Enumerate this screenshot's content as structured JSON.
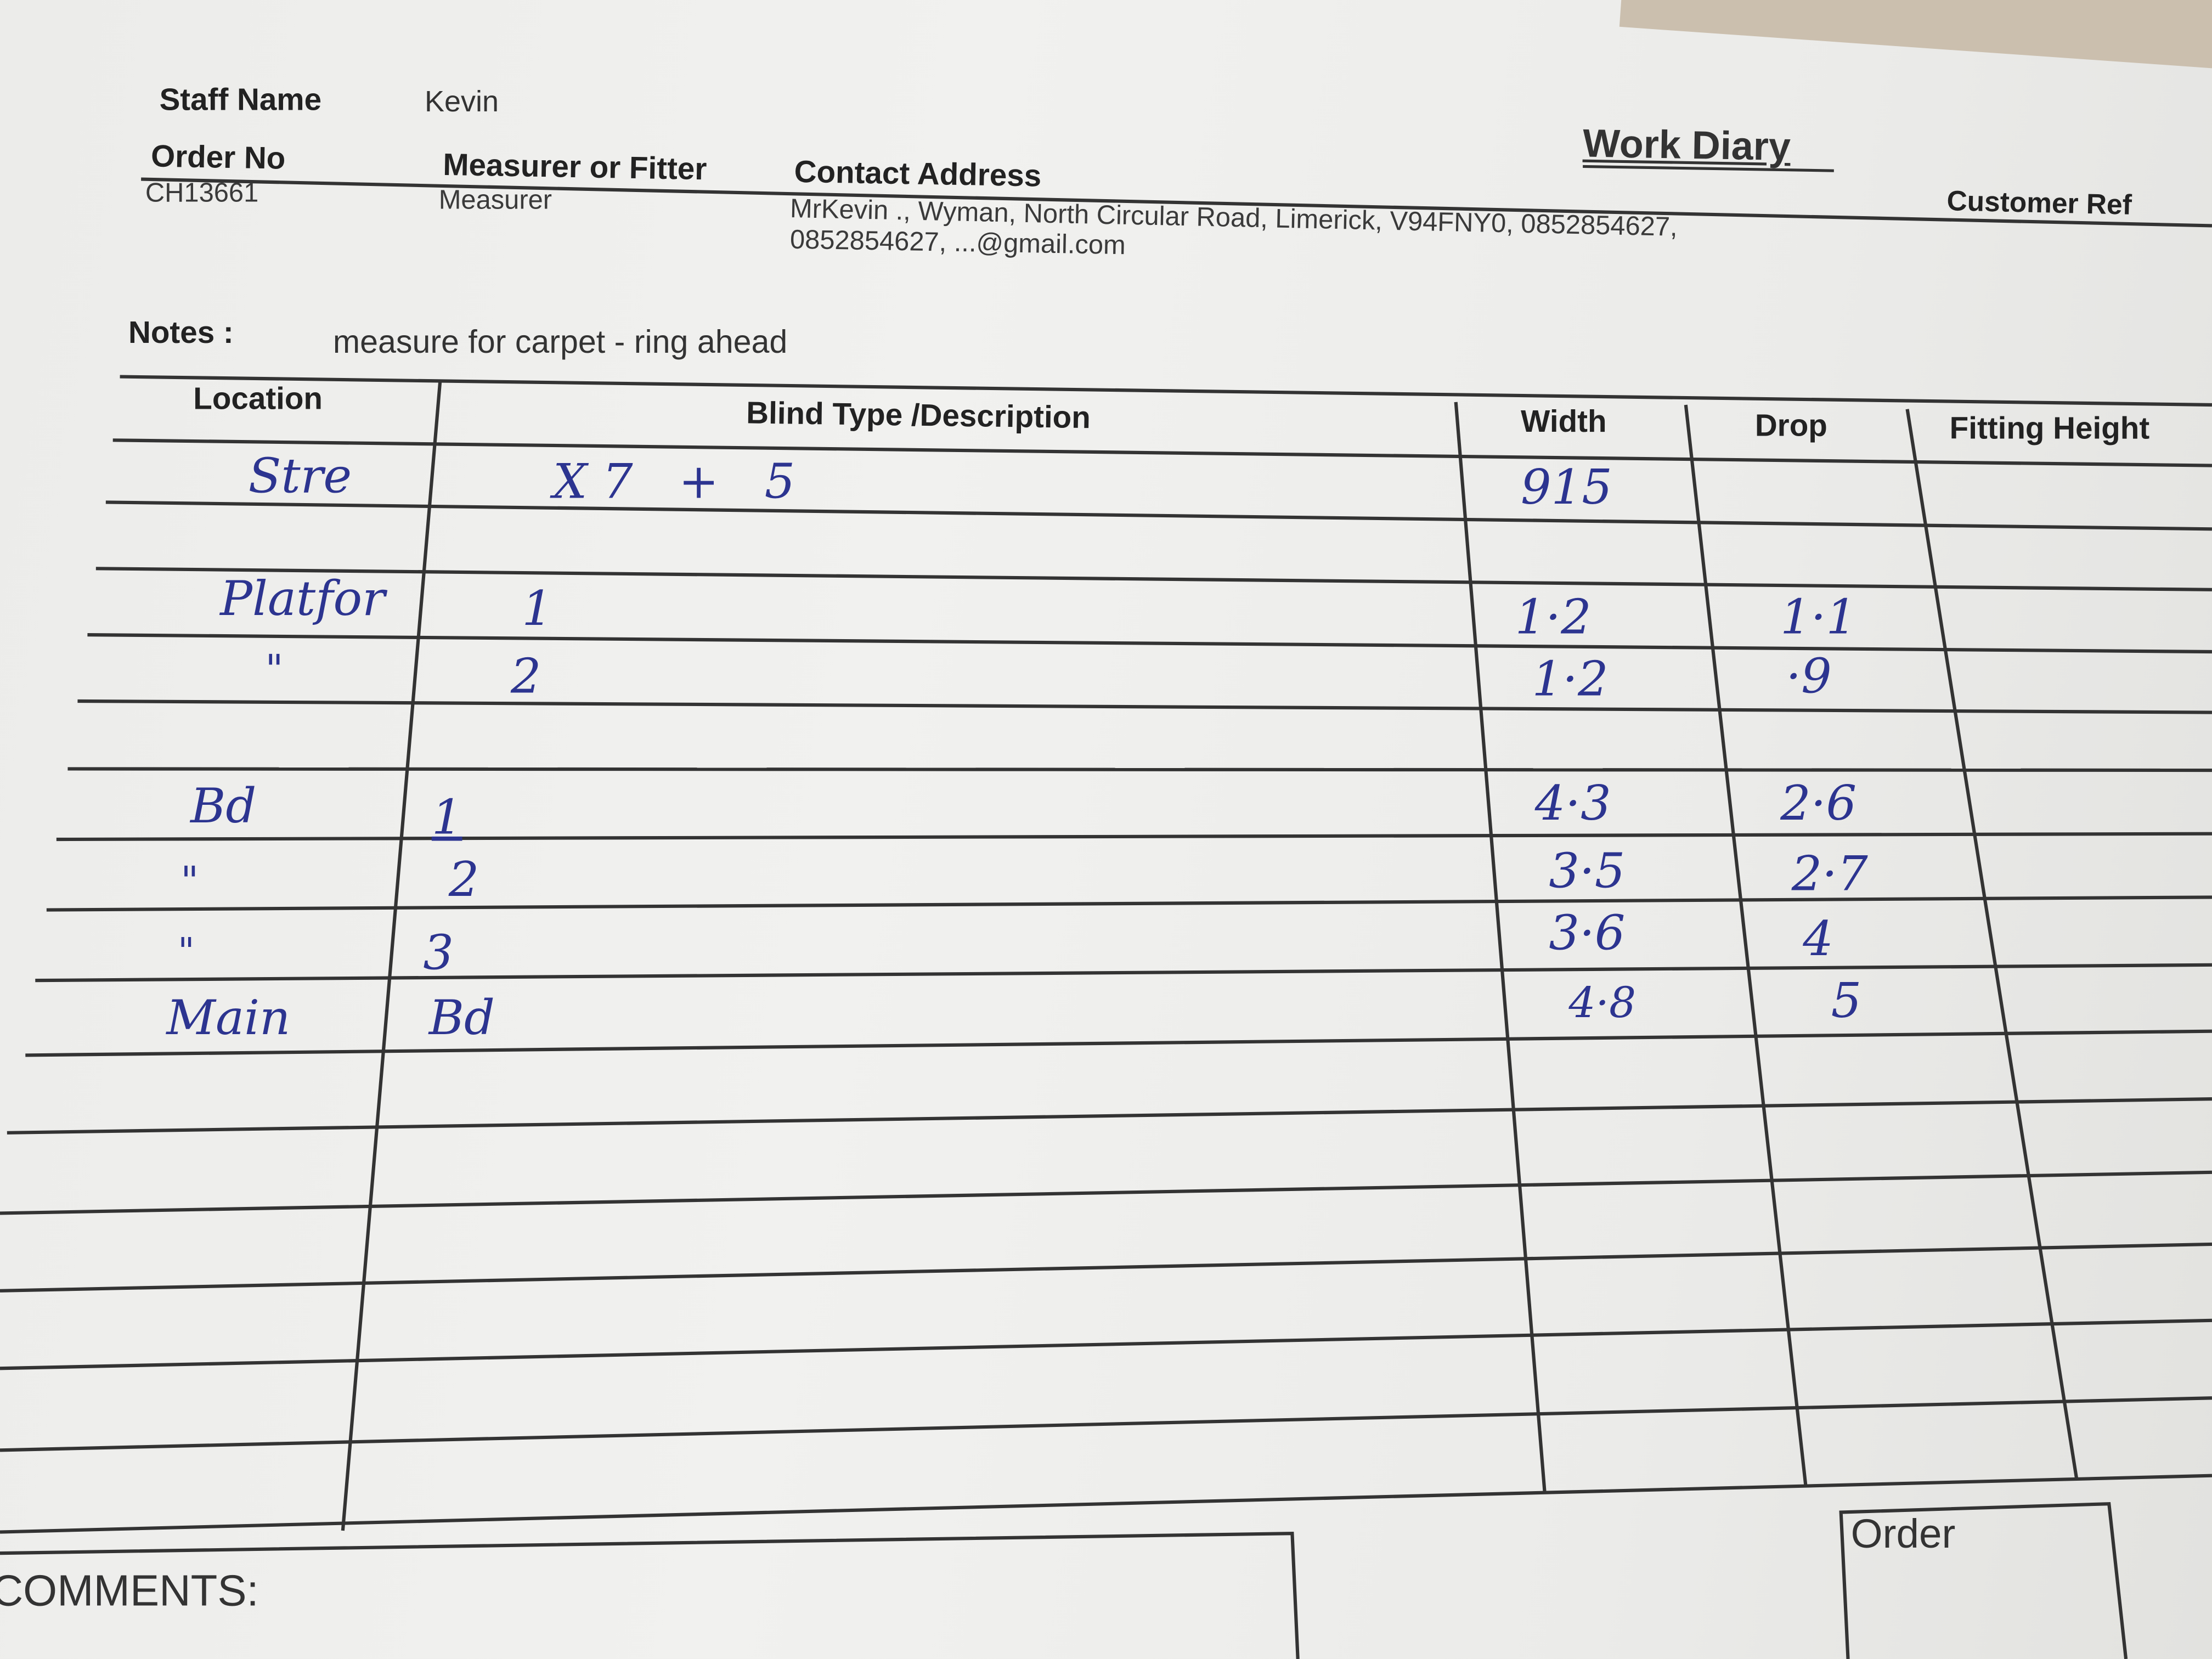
{
  "header": {
    "title": "Work Diary",
    "staff_name_label": "Staff Name",
    "staff_name": "Kevin",
    "order_no_label": "Order No",
    "order_no": "CH13661",
    "role_label": "Measurer or Fitter",
    "role": "Measurer",
    "contact_label": "Contact Address",
    "contact_line1": "MrKevin ., Wyman, North Circular Road, Limerick, V94FNY0, 0852854627,",
    "contact_line2": "0852854627, ...@gmail.com",
    "customer_ref_label": "Customer Ref"
  },
  "notes": {
    "label": "Notes :",
    "text": "measure for carpet - ring ahead"
  },
  "table": {
    "columns": [
      "Location",
      "Blind Type /Description",
      "Width",
      "Drop",
      "Fitting Height"
    ],
    "rows": [
      {
        "location": "Stre",
        "description": "X 7   +   5",
        "width": "915",
        "drop": ""
      },
      {
        "location": "Platfor",
        "description": "1",
        "width": "1·2",
        "drop": "1·1"
      },
      {
        "location": "\"",
        "description": "2",
        "width": "1·2",
        "drop": "·9"
      },
      {
        "location": "Bd",
        "description": "1",
        "width": "4·3",
        "drop": "2·6"
      },
      {
        "location": "\"",
        "description": "2",
        "width": "3·5",
        "drop": "2·7"
      },
      {
        "location": "\"",
        "description": "3",
        "width": "3·6",
        "drop": "4"
      },
      {
        "location": "Main",
        "description": "Bd",
        "width": "4·8",
        "drop": "5"
      }
    ]
  },
  "footer": {
    "comments_label": "COMMENTS:",
    "order_label": "Order"
  },
  "colors": {
    "ink": "#2c3490",
    "print": "#2b2b2b"
  }
}
